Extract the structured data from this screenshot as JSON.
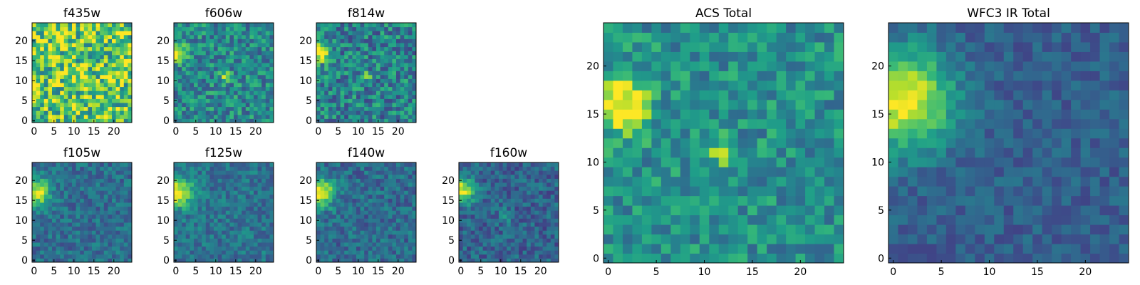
{
  "figure": {
    "panels": [
      {
        "id": "f435w",
        "title": "f435w",
        "xticks": [
          "0",
          "5",
          "10",
          "15",
          "20"
        ],
        "yticks": [
          "0",
          "5",
          "10",
          "15",
          "20"
        ]
      },
      {
        "id": "f606w",
        "title": "f606w",
        "xticks": [
          "0",
          "5",
          "10",
          "15",
          "20"
        ],
        "yticks": [
          "0",
          "5",
          "10",
          "15",
          "20"
        ]
      },
      {
        "id": "f814w",
        "title": "f814w",
        "xticks": [
          "0",
          "5",
          "10",
          "15",
          "20"
        ],
        "yticks": [
          "0",
          "5",
          "10",
          "15",
          "20"
        ]
      },
      {
        "id": "f105w",
        "title": "f105w",
        "xticks": [
          "0",
          "5",
          "10",
          "15",
          "20"
        ],
        "yticks": [
          "0",
          "5",
          "10",
          "15",
          "20"
        ]
      },
      {
        "id": "f125w",
        "title": "f125w",
        "xticks": [
          "0",
          "5",
          "10",
          "15",
          "20"
        ],
        "yticks": [
          "0",
          "5",
          "10",
          "15",
          "20"
        ]
      },
      {
        "id": "f140w",
        "title": "f140w",
        "xticks": [
          "0",
          "5",
          "10",
          "15",
          "20"
        ],
        "yticks": [
          "0",
          "5",
          "10",
          "15",
          "20"
        ]
      },
      {
        "id": "f160w",
        "title": "f160w",
        "xticks": [
          "0",
          "5",
          "10",
          "15",
          "20"
        ],
        "yticks": [
          "0",
          "5",
          "10",
          "15",
          "20"
        ]
      },
      {
        "id": "acs",
        "title": "ACS Total",
        "xticks": [
          "0",
          "5",
          "10",
          "15",
          "20"
        ],
        "yticks": [
          "0",
          "5",
          "10",
          "15",
          "20"
        ]
      },
      {
        "id": "wfc3",
        "title": "WFC3 IR Total",
        "xticks": [
          "0",
          "5",
          "10",
          "15",
          "20"
        ],
        "yticks": [
          "0",
          "5",
          "10",
          "15",
          "20"
        ]
      }
    ]
  },
  "chart_data": [
    {
      "type": "heatmap",
      "title": "f435w",
      "grid_size": [
        25,
        25
      ],
      "xlim": [
        0,
        24
      ],
      "ylim": [
        0,
        24
      ],
      "colormap": "viridis",
      "description_sources": [
        {
          "x": 12,
          "y": 11,
          "intensity": "moderate"
        }
      ],
      "background": "noisy high"
    },
    {
      "type": "heatmap",
      "title": "f606w",
      "grid_size": [
        25,
        25
      ],
      "xlim": [
        0,
        24
      ],
      "ylim": [
        0,
        24
      ],
      "colormap": "viridis",
      "description_sources": [
        {
          "x": 0.5,
          "y": 17,
          "intensity": "bright"
        },
        {
          "x": 12,
          "y": 11,
          "intensity": "bright"
        }
      ]
    },
    {
      "type": "heatmap",
      "title": "f814w",
      "grid_size": [
        25,
        25
      ],
      "xlim": [
        0,
        24
      ],
      "ylim": [
        0,
        24
      ],
      "colormap": "viridis",
      "description_sources": [
        {
          "x": 0.5,
          "y": 17,
          "intensity": "bright"
        },
        {
          "x": 12,
          "y": 11,
          "intensity": "moderate"
        }
      ]
    },
    {
      "type": "heatmap",
      "title": "f105w",
      "grid_size": [
        25,
        25
      ],
      "xlim": [
        0,
        24
      ],
      "ylim": [
        0,
        24
      ],
      "colormap": "viridis",
      "description_sources": [
        {
          "x": 1,
          "y": 17,
          "intensity": "bright"
        }
      ]
    },
    {
      "type": "heatmap",
      "title": "f125w",
      "grid_size": [
        25,
        25
      ],
      "xlim": [
        0,
        24
      ],
      "ylim": [
        0,
        24
      ],
      "colormap": "viridis",
      "description_sources": [
        {
          "x": 1,
          "y": 17,
          "intensity": "bright"
        }
      ]
    },
    {
      "type": "heatmap",
      "title": "f140w",
      "grid_size": [
        25,
        25
      ],
      "xlim": [
        0,
        24
      ],
      "ylim": [
        0,
        24
      ],
      "colormap": "viridis",
      "description_sources": [
        {
          "x": 1,
          "y": 17,
          "intensity": "bright"
        }
      ]
    },
    {
      "type": "heatmap",
      "title": "f160w",
      "grid_size": [
        25,
        25
      ],
      "xlim": [
        0,
        24
      ],
      "ylim": [
        0,
        24
      ],
      "colormap": "viridis",
      "description_sources": [
        {
          "x": 1,
          "y": 17,
          "intensity": "bright"
        },
        {
          "x": 11,
          "y": 11,
          "intensity": "faint"
        }
      ]
    },
    {
      "type": "heatmap",
      "title": "ACS Total",
      "grid_size": [
        25,
        25
      ],
      "xlim": [
        0,
        24
      ],
      "ylim": [
        0,
        24
      ],
      "colormap": "viridis",
      "description_sources": [
        {
          "x": 1.5,
          "y": 16,
          "intensity": "bright"
        },
        {
          "x": 12,
          "y": 11,
          "intensity": "bright"
        }
      ]
    },
    {
      "type": "heatmap",
      "title": "WFC3 IR Total",
      "grid_size": [
        25,
        25
      ],
      "xlim": [
        0,
        24
      ],
      "ylim": [
        0,
        24
      ],
      "colormap": "viridis",
      "description_sources": [
        {
          "x": 1.5,
          "y": 16.5,
          "intensity": "bright"
        }
      ]
    }
  ]
}
